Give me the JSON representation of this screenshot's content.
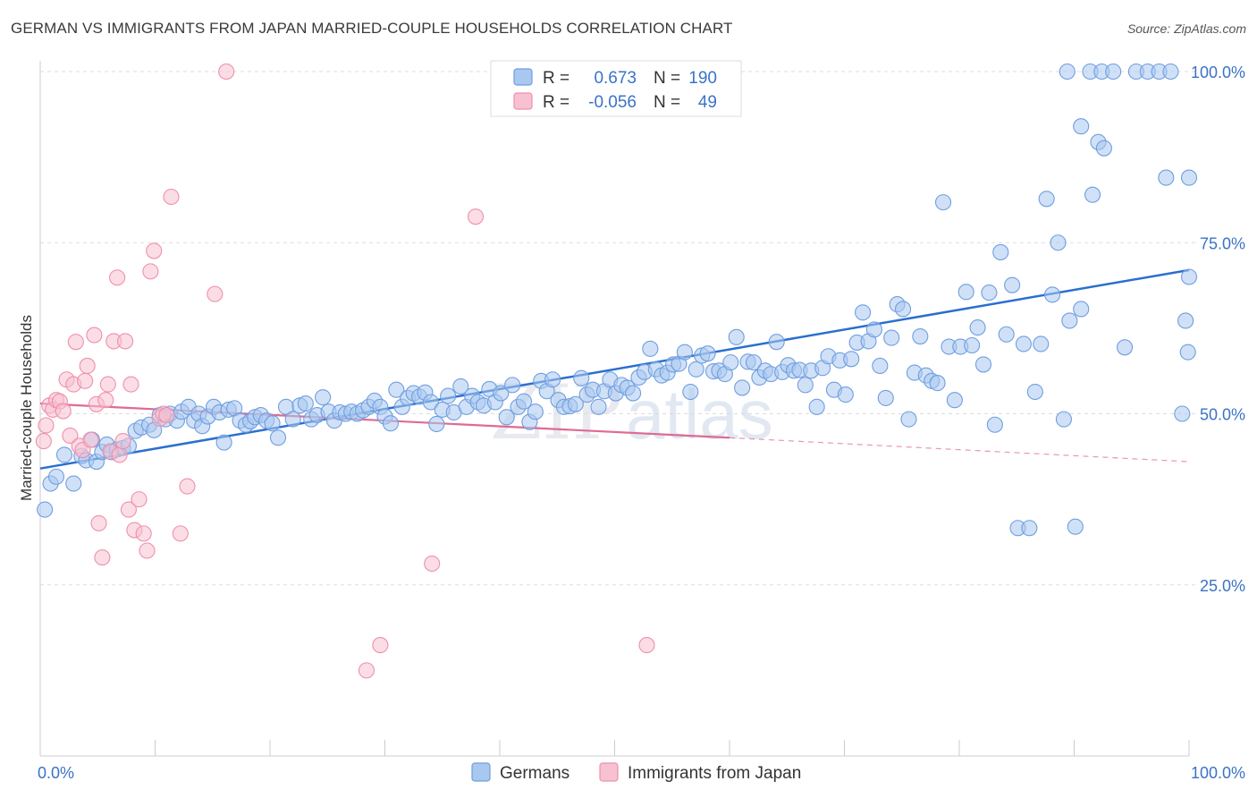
{
  "title": "GERMAN VS IMMIGRANTS FROM JAPAN MARRIED-COUPLE HOUSEHOLDS CORRELATION CHART",
  "source": "Source: ZipAtlas.com",
  "watermark": "ZIPatlas",
  "colors": {
    "blue": "#6f9ee0",
    "blue_fill": "#a9c8f0",
    "blue_line": "#2a6fcf",
    "pink": "#ef8fab",
    "pink_fill": "#f7c1d1",
    "pink_line": "#e06a92",
    "axis_text": "#3a73c7",
    "grid": "#dddddd"
  },
  "legend": {
    "rows": [
      {
        "r_label": "R =",
        "r_value": "0.673",
        "n_label": "N =",
        "n_value": "190",
        "color": "blue"
      },
      {
        "r_label": "R =",
        "r_value": "-0.056",
        "n_label": "N =",
        "n_value": "49",
        "color": "pink"
      }
    ]
  },
  "bottom_legend": [
    {
      "label": "Germans",
      "color": "blue"
    },
    {
      "label": "Immigrants from Japan",
      "color": "pink"
    }
  ],
  "chart_data": {
    "type": "scatter",
    "title": "GERMAN VS IMMIGRANTS FROM JAPAN MARRIED-COUPLE HOUSEHOLDS CORRELATION CHART",
    "xlabel": "",
    "ylabel": "Married-couple Households",
    "xlim": [
      0,
      100
    ],
    "ylim": [
      0,
      102
    ],
    "x_tick_labels": [
      "0.0%",
      "100.0%"
    ],
    "y_ticks": [
      25,
      50,
      75,
      100
    ],
    "y_tick_labels": [
      "25.0%",
      "50.0%",
      "75.0%",
      "100.0%"
    ],
    "grid": true,
    "legend_position": "top-center",
    "series": [
      {
        "name": "Germans",
        "color": "blue",
        "trend": {
          "x": [
            0,
            100
          ],
          "y": [
            42.0,
            71.0
          ],
          "style": "solid"
        },
        "points": [
          [
            0.4,
            36.0
          ],
          [
            0.9,
            39.8
          ],
          [
            1.4,
            40.8
          ],
          [
            2.1,
            44.0
          ],
          [
            2.9,
            39.8
          ],
          [
            3.6,
            43.8
          ],
          [
            4.0,
            43.2
          ],
          [
            4.5,
            46.2
          ],
          [
            4.9,
            43.0
          ],
          [
            5.4,
            44.4
          ],
          [
            5.8,
            45.5
          ],
          [
            6.2,
            44.4
          ],
          [
            6.7,
            44.8
          ],
          [
            7.2,
            45.0
          ],
          [
            7.7,
            45.3
          ],
          [
            8.3,
            47.5
          ],
          [
            8.8,
            48.0
          ],
          [
            9.5,
            48.4
          ],
          [
            9.9,
            47.6
          ],
          [
            10.4,
            49.8
          ],
          [
            10.9,
            49.2
          ],
          [
            11.3,
            50.0
          ],
          [
            11.9,
            49.0
          ],
          [
            12.3,
            50.3
          ],
          [
            12.9,
            51.0
          ],
          [
            13.4,
            49.0
          ],
          [
            13.8,
            50.0
          ],
          [
            14.1,
            48.2
          ],
          [
            14.6,
            49.6
          ],
          [
            15.1,
            51.0
          ],
          [
            15.6,
            50.2
          ],
          [
            16.0,
            45.8
          ],
          [
            16.4,
            50.6
          ],
          [
            16.9,
            50.8
          ],
          [
            17.4,
            49.0
          ],
          [
            17.9,
            48.4
          ],
          [
            18.3,
            48.9
          ],
          [
            18.7,
            49.5
          ],
          [
            19.2,
            49.8
          ],
          [
            19.7,
            49.0
          ],
          [
            20.2,
            48.6
          ],
          [
            20.7,
            46.5
          ],
          [
            21.4,
            51.0
          ],
          [
            22.0,
            49.2
          ],
          [
            22.6,
            51.2
          ],
          [
            23.1,
            51.5
          ],
          [
            23.6,
            49.2
          ],
          [
            24.1,
            49.8
          ],
          [
            24.6,
            52.4
          ],
          [
            25.1,
            50.3
          ],
          [
            25.6,
            49.0
          ],
          [
            26.1,
            50.2
          ],
          [
            26.6,
            50.0
          ],
          [
            27.1,
            50.3
          ],
          [
            27.6,
            50.0
          ],
          [
            28.1,
            50.5
          ],
          [
            28.6,
            51.0
          ],
          [
            29.1,
            51.9
          ],
          [
            29.6,
            51.0
          ],
          [
            30.0,
            49.6
          ],
          [
            30.5,
            48.6
          ],
          [
            31.0,
            53.5
          ],
          [
            31.5,
            51.0
          ],
          [
            32.0,
            52.3
          ],
          [
            32.5,
            53.0
          ],
          [
            33.0,
            52.5
          ],
          [
            33.5,
            53.1
          ],
          [
            34.0,
            51.7
          ],
          [
            34.5,
            48.5
          ],
          [
            35.0,
            50.6
          ],
          [
            35.5,
            52.6
          ],
          [
            36.0,
            50.2
          ],
          [
            36.6,
            54.0
          ],
          [
            37.1,
            51.0
          ],
          [
            37.6,
            52.6
          ],
          [
            38.1,
            51.7
          ],
          [
            38.6,
            51.2
          ],
          [
            39.1,
            53.6
          ],
          [
            39.6,
            51.7
          ],
          [
            40.1,
            53.0
          ],
          [
            40.6,
            49.5
          ],
          [
            41.1,
            54.2
          ],
          [
            41.6,
            51.0
          ],
          [
            42.1,
            51.8
          ],
          [
            42.6,
            48.8
          ],
          [
            43.1,
            50.3
          ],
          [
            43.6,
            54.8
          ],
          [
            44.1,
            53.3
          ],
          [
            44.6,
            55.0
          ],
          [
            45.1,
            52.0
          ],
          [
            45.6,
            51.0
          ],
          [
            46.1,
            51.1
          ],
          [
            46.6,
            51.4
          ],
          [
            47.1,
            55.2
          ],
          [
            47.6,
            52.8
          ],
          [
            48.1,
            53.5
          ],
          [
            48.6,
            51.0
          ],
          [
            49.1,
            53.3
          ],
          [
            49.6,
            55.0
          ],
          [
            50.1,
            53.0
          ],
          [
            50.6,
            54.2
          ],
          [
            51.1,
            53.8
          ],
          [
            51.6,
            53.0
          ],
          [
            52.1,
            55.3
          ],
          [
            52.6,
            56.1
          ],
          [
            53.1,
            59.5
          ],
          [
            53.6,
            56.5
          ],
          [
            54.1,
            55.6
          ],
          [
            54.6,
            56.0
          ],
          [
            55.1,
            57.2
          ],
          [
            55.6,
            57.3
          ],
          [
            56.1,
            59.0
          ],
          [
            56.6,
            53.2
          ],
          [
            57.1,
            56.5
          ],
          [
            57.6,
            58.5
          ],
          [
            58.1,
            58.8
          ],
          [
            58.6,
            56.2
          ],
          [
            59.1,
            56.3
          ],
          [
            59.6,
            55.8
          ],
          [
            60.1,
            57.5
          ],
          [
            60.6,
            61.2
          ],
          [
            61.1,
            53.8
          ],
          [
            61.6,
            57.6
          ],
          [
            62.1,
            57.5
          ],
          [
            62.6,
            55.3
          ],
          [
            63.1,
            56.3
          ],
          [
            63.6,
            55.8
          ],
          [
            64.1,
            60.5
          ],
          [
            64.6,
            56.1
          ],
          [
            65.1,
            57.1
          ],
          [
            65.6,
            56.3
          ],
          [
            66.1,
            56.4
          ],
          [
            66.6,
            54.2
          ],
          [
            67.1,
            56.3
          ],
          [
            67.6,
            51.0
          ],
          [
            68.1,
            56.7
          ],
          [
            68.6,
            58.4
          ],
          [
            69.1,
            53.5
          ],
          [
            69.6,
            57.8
          ],
          [
            70.1,
            52.8
          ],
          [
            70.6,
            58.0
          ],
          [
            71.1,
            60.4
          ],
          [
            71.6,
            64.8
          ],
          [
            72.1,
            60.6
          ],
          [
            72.6,
            62.3
          ],
          [
            73.1,
            57.0
          ],
          [
            73.6,
            52.3
          ],
          [
            74.1,
            61.1
          ],
          [
            74.6,
            66.0
          ],
          [
            75.1,
            65.3
          ],
          [
            75.6,
            49.2
          ],
          [
            76.1,
            56.0
          ],
          [
            76.6,
            61.3
          ],
          [
            77.1,
            55.6
          ],
          [
            77.6,
            54.8
          ],
          [
            78.1,
            54.5
          ],
          [
            78.6,
            80.9
          ],
          [
            79.1,
            59.8
          ],
          [
            79.6,
            52.0
          ],
          [
            80.1,
            59.8
          ],
          [
            80.6,
            67.8
          ],
          [
            81.1,
            60.0
          ],
          [
            81.6,
            62.6
          ],
          [
            82.1,
            57.2
          ],
          [
            82.6,
            67.7
          ],
          [
            83.1,
            48.4
          ],
          [
            83.6,
            73.6
          ],
          [
            84.1,
            61.6
          ],
          [
            84.6,
            68.8
          ],
          [
            85.1,
            33.3
          ],
          [
            85.6,
            60.2
          ],
          [
            86.1,
            33.3
          ],
          [
            86.6,
            53.2
          ],
          [
            87.1,
            60.2
          ],
          [
            87.6,
            81.4
          ],
          [
            88.1,
            67.4
          ],
          [
            88.6,
            75.0
          ],
          [
            89.1,
            49.2
          ],
          [
            89.6,
            63.6
          ],
          [
            90.1,
            33.5
          ],
          [
            90.6,
            92.0
          ],
          [
            90.6,
            65.3
          ],
          [
            91.6,
            82.0
          ],
          [
            92.1,
            89.7
          ],
          [
            92.6,
            88.8
          ],
          [
            89.4,
            100.0
          ],
          [
            91.4,
            100.0
          ],
          [
            92.4,
            100.0
          ],
          [
            93.4,
            100.0
          ],
          [
            94.4,
            59.7
          ],
          [
            95.4,
            100.0
          ],
          [
            96.4,
            100.0
          ],
          [
            97.4,
            100.0
          ],
          [
            98.4,
            100.0
          ],
          [
            99.4,
            50.0
          ],
          [
            99.7,
            63.6
          ],
          [
            99.9,
            59.0
          ],
          [
            100.0,
            70.0
          ],
          [
            98.0,
            84.5
          ],
          [
            100.0,
            84.5
          ]
        ]
      },
      {
        "name": "Immigrants from Japan",
        "color": "pink",
        "trend": {
          "x": [
            0,
            60
          ],
          "y": [
            51.5,
            46.5
          ],
          "style": "solid"
        },
        "trend_ext": {
          "x": [
            60,
            100
          ],
          "y": [
            46.5,
            43.0
          ],
          "style": "dashed"
        },
        "points": [
          [
            0.3,
            46.0
          ],
          [
            0.5,
            48.3
          ],
          [
            0.8,
            51.2
          ],
          [
            1.1,
            50.6
          ],
          [
            1.4,
            52.0
          ],
          [
            1.7,
            51.8
          ],
          [
            2.0,
            50.4
          ],
          [
            2.3,
            55.0
          ],
          [
            2.6,
            46.8
          ],
          [
            2.9,
            54.3
          ],
          [
            3.1,
            60.5
          ],
          [
            3.4,
            45.3
          ],
          [
            3.7,
            44.7
          ],
          [
            3.9,
            54.8
          ],
          [
            4.1,
            57.0
          ],
          [
            4.4,
            46.2
          ],
          [
            4.7,
            61.5
          ],
          [
            4.9,
            51.4
          ],
          [
            5.1,
            34.0
          ],
          [
            5.4,
            29.0
          ],
          [
            5.7,
            52.0
          ],
          [
            5.9,
            54.3
          ],
          [
            6.1,
            44.5
          ],
          [
            6.4,
            60.6
          ],
          [
            6.7,
            69.9
          ],
          [
            6.9,
            44.0
          ],
          [
            7.2,
            46.0
          ],
          [
            7.4,
            60.6
          ],
          [
            7.7,
            36.0
          ],
          [
            7.9,
            54.3
          ],
          [
            8.2,
            33.0
          ],
          [
            8.6,
            37.5
          ],
          [
            9.0,
            32.5
          ],
          [
            9.3,
            30.0
          ],
          [
            9.6,
            70.8
          ],
          [
            9.9,
            73.8
          ],
          [
            10.4,
            49.3
          ],
          [
            10.7,
            50.0
          ],
          [
            11.0,
            49.8
          ],
          [
            11.4,
            81.7
          ],
          [
            12.2,
            32.5
          ],
          [
            12.8,
            39.4
          ],
          [
            15.2,
            67.5
          ],
          [
            16.2,
            100.0
          ],
          [
            28.4,
            12.5
          ],
          [
            29.6,
            16.2
          ],
          [
            34.1,
            28.1
          ],
          [
            37.9,
            78.8
          ],
          [
            52.8,
            16.2
          ]
        ]
      }
    ]
  }
}
